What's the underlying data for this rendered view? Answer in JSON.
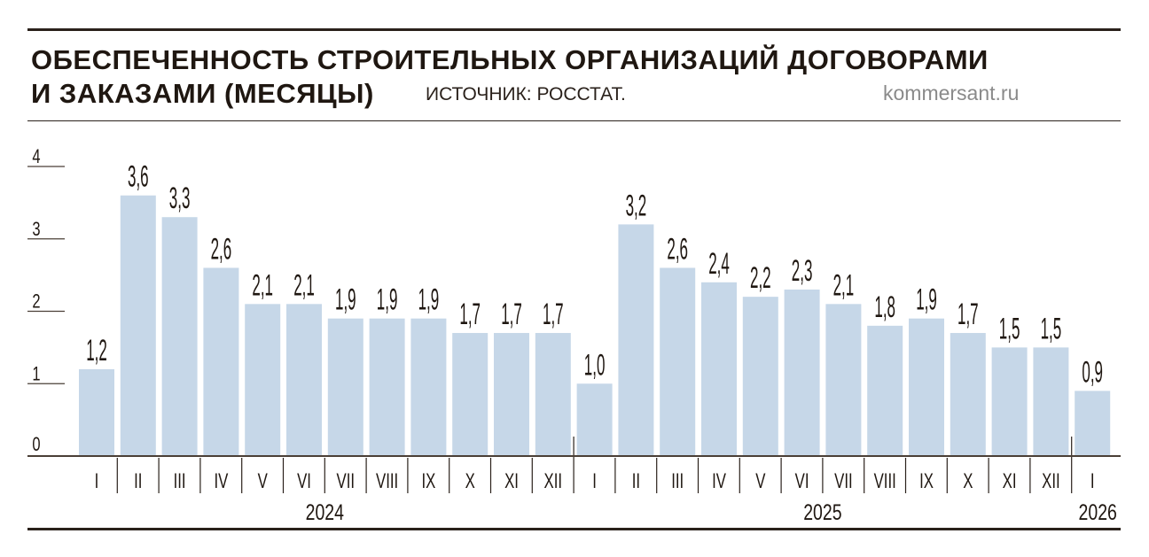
{
  "header": {
    "title_line1": "ОБЕСПЕЧЕННОСТЬ СТРОИТЕЛЬНЫХ ОРГАНИЗАЦИЙ ДОГОВОРАМИ",
    "title_line2": "И ЗАКАЗАМИ (МЕСЯЦЫ)",
    "source": "ИСТОЧНИК: РОССТАТ.",
    "site": "kommersant.ru"
  },
  "chart_data": {
    "type": "bar",
    "title": "ОБЕСПЕЧЕННОСТЬ СТРОИТЕЛЬНЫХ ОРГАНИЗАЦИЙ ДОГОВОРАМИ И ЗАКАЗАМИ (МЕСЯЦЫ)",
    "categories": [
      "I",
      "II",
      "III",
      "IV",
      "V",
      "VI",
      "VII",
      "VIII",
      "IX",
      "X",
      "XI",
      "XII",
      "I",
      "II",
      "III",
      "IV",
      "V",
      "VI",
      "VII",
      "VIII",
      "IX",
      "X",
      "XI",
      "XII",
      "I"
    ],
    "values": [
      1.2,
      3.6,
      3.3,
      2.6,
      2.1,
      2.1,
      1.9,
      1.9,
      1.9,
      1.7,
      1.7,
      1.7,
      1.0,
      3.2,
      2.6,
      2.4,
      2.2,
      2.3,
      2.1,
      1.8,
      1.9,
      1.7,
      1.5,
      1.5,
      0.9
    ],
    "value_labels": [
      "1,2",
      "3,6",
      "3,3",
      "2,6",
      "2,1",
      "2,1",
      "1,9",
      "1,9",
      "1,9",
      "1,7",
      "1,7",
      "1,7",
      "1,0",
      "3,2",
      "2,6",
      "2,4",
      "2,2",
      "2,3",
      "2,1",
      "1,8",
      "1,9",
      "1,7",
      "1,5",
      "1,5",
      "0,9"
    ],
    "years": [
      {
        "label": "2024",
        "start": 0,
        "count": 12
      },
      {
        "label": "2025",
        "start": 12,
        "count": 12
      },
      {
        "label": "2026",
        "start": 24,
        "count": 1
      }
    ],
    "yticks": [
      "0",
      "1",
      "2",
      "3",
      "4"
    ],
    "ylim": [
      0,
      4
    ],
    "xlabel": "",
    "ylabel": "",
    "grid": false,
    "bar_color": "#c6d7e8",
    "text_color": "#1f1711"
  }
}
